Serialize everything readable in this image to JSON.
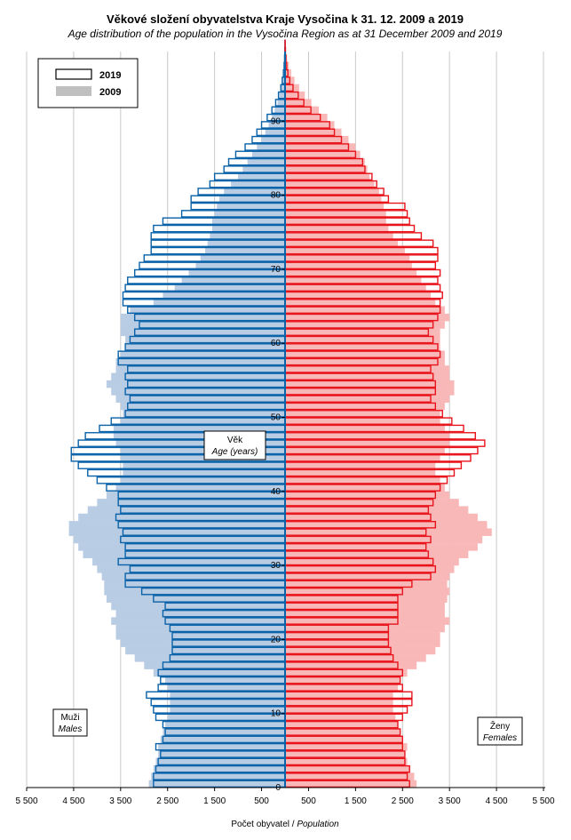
{
  "chart_data": {
    "type": "bar",
    "subtype": "population-pyramid",
    "title": "Věkové složení obyvatelstva  Kraje Vysočina  k 31. 12. 2009  a 2019",
    "subtitle": "Age distribution of the population  in the Vysočina Region  as at 31 December 2009 and 2019",
    "xlabel_cz": "Počet obyvatel /",
    "xlabel_en": "Population",
    "ylabel_cz": "Věk",
    "ylabel_en": "Age (years)",
    "males_label_cz": "Muži",
    "males_label_en": "Males",
    "females_label_cz": "Ženy",
    "females_label_en": "Females",
    "x_tick_labels": [
      "5 500",
      "4 500",
      "3 500",
      "2 500",
      "1 500",
      "500",
      "500",
      "1 500",
      "2 500",
      "3 500",
      "4 500",
      "5 500"
    ],
    "x_tick_values": [
      -5500,
      -4500,
      -3500,
      -2500,
      -1500,
      -500,
      500,
      1500,
      2500,
      3500,
      4500,
      5500
    ],
    "y_tick_labels": [
      "0",
      "10",
      "20",
      "30",
      "40",
      "50",
      "60",
      "70",
      "80",
      "90"
    ],
    "y_tick_values": [
      0,
      10,
      20,
      30,
      40,
      50,
      60,
      70,
      80,
      90
    ],
    "xlim": [
      -5500,
      5500
    ],
    "ylim": [
      0,
      100
    ],
    "grid": "vertical",
    "legend_position": "top-left",
    "ages": [
      0,
      1,
      2,
      3,
      4,
      5,
      6,
      7,
      8,
      9,
      10,
      11,
      12,
      13,
      14,
      15,
      16,
      17,
      18,
      19,
      20,
      21,
      22,
      23,
      24,
      25,
      26,
      27,
      28,
      29,
      30,
      31,
      32,
      33,
      34,
      35,
      36,
      37,
      38,
      39,
      40,
      41,
      42,
      43,
      44,
      45,
      46,
      47,
      48,
      49,
      50,
      51,
      52,
      53,
      54,
      55,
      56,
      57,
      58,
      59,
      60,
      61,
      62,
      63,
      64,
      65,
      66,
      67,
      68,
      69,
      70,
      71,
      72,
      73,
      74,
      75,
      76,
      77,
      78,
      79,
      80,
      81,
      82,
      83,
      84,
      85,
      86,
      87,
      88,
      89,
      90,
      91,
      92,
      93,
      94,
      95,
      96,
      97,
      98,
      99,
      100
    ],
    "series": [
      {
        "name": "2009",
        "style": "filled",
        "males": [
          2900,
          2850,
          2800,
          2750,
          2700,
          2700,
          2650,
          2600,
          2550,
          2500,
          2450,
          2450,
          2450,
          2500,
          2550,
          2800,
          3000,
          3200,
          3400,
          3500,
          3600,
          3600,
          3700,
          3600,
          3700,
          3800,
          3850,
          3850,
          3900,
          4000,
          4100,
          4300,
          4400,
          4500,
          4600,
          4600,
          4400,
          4200,
          4000,
          3800,
          3600,
          3500,
          3450,
          3450,
          3500,
          3500,
          3600,
          3650,
          3650,
          3500,
          3450,
          3500,
          3600,
          3700,
          3800,
          3700,
          3600,
          3600,
          3500,
          3400,
          3400,
          3500,
          3500,
          3500,
          3300,
          2800,
          2600,
          2350,
          2200,
          2050,
          1900,
          1800,
          1700,
          1650,
          1600,
          1550,
          1550,
          1500,
          1450,
          1400,
          1300,
          1150,
          1000,
          900,
          800,
          700,
          600,
          500,
          420,
          350,
          280,
          220,
          160,
          120,
          80,
          55,
          35,
          20,
          12,
          6,
          3
        ],
        "females": [
          2800,
          2750,
          2650,
          2600,
          2550,
          2600,
          2500,
          2450,
          2400,
          2350,
          2300,
          2300,
          2300,
          2400,
          2450,
          2600,
          2800,
          3000,
          3200,
          3300,
          3300,
          3400,
          3500,
          3400,
          3400,
          3450,
          3500,
          3450,
          3500,
          3600,
          3700,
          3900,
          4100,
          4200,
          4400,
          4300,
          4100,
          3900,
          3700,
          3500,
          3400,
          3300,
          3200,
          3200,
          3300,
          3400,
          3500,
          3500,
          3400,
          3300,
          3300,
          3400,
          3500,
          3600,
          3600,
          3500,
          3500,
          3400,
          3400,
          3300,
          3300,
          3300,
          3400,
          3500,
          3400,
          3200,
          3100,
          3000,
          2900,
          2800,
          2700,
          2650,
          2550,
          2400,
          2300,
          2200,
          2150,
          2150,
          2100,
          2050,
          2000,
          1900,
          1800,
          1750,
          1700,
          1600,
          1500,
          1350,
          1200,
          1050,
          900,
          720,
          560,
          420,
          300,
          200,
          130,
          80,
          45,
          22,
          10
        ]
      },
      {
        "name": "2019",
        "style": "outline",
        "males": [
          2800,
          2800,
          2750,
          2700,
          2650,
          2750,
          2600,
          2550,
          2600,
          2750,
          2800,
          2850,
          2950,
          2700,
          2650,
          2700,
          2600,
          2450,
          2400,
          2400,
          2400,
          2450,
          2550,
          2600,
          2550,
          2800,
          3050,
          3400,
          3400,
          3300,
          3550,
          3400,
          3400,
          3500,
          3450,
          3550,
          3600,
          3500,
          3550,
          3550,
          3800,
          4000,
          4200,
          4400,
          4550,
          4550,
          4400,
          4250,
          3950,
          3700,
          3400,
          3350,
          3300,
          3400,
          3350,
          3400,
          3350,
          3550,
          3550,
          3400,
          3300,
          3200,
          3100,
          3200,
          3350,
          3450,
          3450,
          3400,
          3350,
          3200,
          3100,
          3000,
          2850,
          2850,
          2850,
          2800,
          2600,
          2200,
          2000,
          2000,
          1850,
          1600,
          1500,
          1300,
          1200,
          1050,
          850,
          700,
          600,
          500,
          380,
          280,
          200,
          140,
          90,
          60,
          35,
          20,
          10,
          5,
          2
        ],
        "females": [
          2650,
          2600,
          2650,
          2550,
          2550,
          2500,
          2500,
          2450,
          2400,
          2500,
          2600,
          2700,
          2700,
          2500,
          2450,
          2500,
          2400,
          2300,
          2250,
          2200,
          2200,
          2200,
          2400,
          2400,
          2400,
          2400,
          2500,
          2700,
          3100,
          3200,
          3150,
          3050,
          3000,
          3100,
          3000,
          3200,
          3100,
          3050,
          3150,
          3200,
          3300,
          3450,
          3600,
          3750,
          3950,
          4100,
          4250,
          4050,
          3800,
          3550,
          3350,
          3200,
          3100,
          3200,
          3200,
          3150,
          3100,
          3250,
          3300,
          3250,
          3150,
          3050,
          3150,
          3250,
          3300,
          3300,
          3350,
          3300,
          3250,
          3300,
          3200,
          3250,
          3250,
          3150,
          2900,
          2750,
          2650,
          2600,
          2550,
          2200,
          2100,
          1950,
          1850,
          1700,
          1650,
          1500,
          1350,
          1200,
          1050,
          950,
          750,
          550,
          400,
          280,
          170,
          100,
          60,
          35,
          18,
          8,
          4
        ]
      }
    ]
  }
}
